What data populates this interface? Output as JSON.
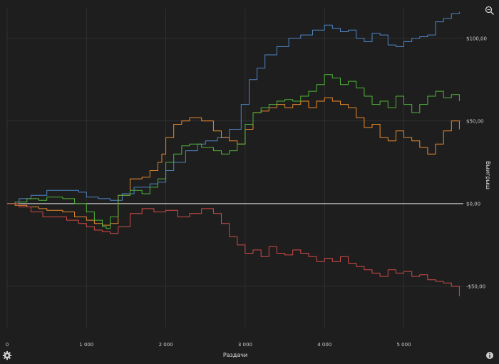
{
  "icons": {
    "zoom": "zoom-icon",
    "settings": "gear-icon",
    "info": "info-icon"
  },
  "colors": {
    "background": "#1e1e1e",
    "grid": "#3a3a3a",
    "zero_line": "#e8e8e8",
    "text": "#cfcfcf"
  },
  "chart_data": {
    "type": "line",
    "xlabel": "Раздачи",
    "ylabel": "Выигрыш",
    "xlim": [
      0,
      5750
    ],
    "ylim": [
      -75,
      118
    ],
    "x_ticks": [
      {
        "value": 0,
        "label": "0"
      },
      {
        "value": 1000,
        "label": "1 000"
      },
      {
        "value": 2000,
        "label": "2 000"
      },
      {
        "value": 3000,
        "label": "3 000"
      },
      {
        "value": 4000,
        "label": "4 000"
      },
      {
        "value": 5000,
        "label": "5 000"
      }
    ],
    "y_ticks": [
      {
        "value": 100,
        "label": "$100,00"
      },
      {
        "value": 50,
        "label": "$50,00"
      },
      {
        "value": 0,
        "label": "$0,00"
      },
      {
        "value": -50,
        "label": "-$50,00"
      }
    ],
    "grid": true,
    "series": [
      {
        "color": "#4f86c6",
        "x": [
          0,
          150,
          300,
          500,
          700,
          900,
          1000,
          1150,
          1300,
          1450,
          1600,
          1800,
          1900,
          2000,
          2100,
          2250,
          2400,
          2500,
          2650,
          2800,
          2950,
          3050,
          3150,
          3250,
          3400,
          3550,
          3700,
          3850,
          4000,
          4100,
          4200,
          4300,
          4400,
          4500,
          4600,
          4700,
          4800,
          4900,
          5000,
          5100,
          5200,
          5300,
          5400,
          5500,
          5600,
          5700
        ],
        "values": [
          0,
          3,
          5,
          8,
          8,
          7,
          4,
          3,
          2,
          6,
          10,
          12,
          13,
          20,
          25,
          32,
          36,
          38,
          40,
          45,
          60,
          75,
          82,
          90,
          95,
          100,
          102,
          105,
          108,
          106,
          104,
          105,
          100,
          98,
          103,
          102,
          96,
          95,
          98,
          100,
          101,
          102,
          110,
          112,
          115,
          116
        ]
      },
      {
        "color": "#e68a2e",
        "x": [
          0,
          100,
          250,
          400,
          500,
          700,
          850,
          1000,
          1100,
          1200,
          1300,
          1400,
          1550,
          1700,
          1800,
          1900,
          1950,
          2000,
          2100,
          2200,
          2300,
          2450,
          2600,
          2700,
          2800,
          2900,
          3000,
          3100,
          3200,
          3300,
          3400,
          3500,
          3600,
          3700,
          3800,
          3900,
          4000,
          4100,
          4200,
          4300,
          4400,
          4500,
          4600,
          4700,
          4800,
          4900,
          5000,
          5100,
          5200,
          5300,
          5400,
          5500,
          5600,
          5700
        ],
        "values": [
          0,
          -1,
          -2,
          -3,
          -4,
          -5,
          -8,
          -10,
          -12,
          -13,
          -12,
          5,
          15,
          16,
          20,
          25,
          30,
          40,
          48,
          50,
          52,
          50,
          44,
          40,
          38,
          36,
          45,
          55,
          56,
          58,
          60,
          58,
          60,
          62,
          58,
          62,
          64,
          62,
          60,
          58,
          52,
          46,
          48,
          40,
          38,
          44,
          40,
          38,
          34,
          30,
          36,
          44,
          50,
          45
        ]
      },
      {
        "color": "#4fb33a",
        "x": [
          0,
          100,
          250,
          400,
          500,
          700,
          850,
          1000,
          1100,
          1200,
          1250,
          1300,
          1400,
          1550,
          1700,
          1800,
          1900,
          2000,
          2100,
          2200,
          2300,
          2450,
          2600,
          2700,
          2800,
          2900,
          3000,
          3100,
          3200,
          3300,
          3400,
          3500,
          3600,
          3700,
          3800,
          3900,
          4000,
          4100,
          4200,
          4300,
          4400,
          4500,
          4600,
          4700,
          4800,
          4900,
          5000,
          5100,
          5200,
          5300,
          5400,
          5500,
          5600,
          5700
        ],
        "values": [
          0,
          1,
          3,
          2,
          4,
          3,
          0,
          -5,
          -10,
          -14,
          -15,
          -8,
          5,
          8,
          6,
          10,
          15,
          25,
          30,
          35,
          36,
          34,
          32,
          30,
          32,
          36,
          48,
          55,
          58,
          60,
          62,
          63,
          62,
          65,
          68,
          72,
          78,
          76,
          72,
          74,
          70,
          65,
          60,
          62,
          58,
          65,
          60,
          55,
          60,
          65,
          68,
          64,
          66,
          62
        ]
      },
      {
        "color": "#d04b47",
        "x": [
          0,
          150,
          300,
          450,
          600,
          750,
          900,
          1000,
          1100,
          1200,
          1300,
          1400,
          1550,
          1700,
          1850,
          2000,
          2150,
          2300,
          2450,
          2600,
          2700,
          2800,
          2900,
          3000,
          3100,
          3200,
          3300,
          3400,
          3500,
          3600,
          3700,
          3800,
          3900,
          4000,
          4100,
          4200,
          4300,
          4400,
          4500,
          4600,
          4700,
          4800,
          4900,
          5000,
          5100,
          5200,
          5300,
          5400,
          5500,
          5600,
          5700
        ],
        "values": [
          0,
          -2,
          -5,
          -8,
          -8,
          -10,
          -12,
          -14,
          -16,
          -17,
          -18,
          -14,
          -6,
          -3,
          -5,
          -4,
          -8,
          -6,
          -3,
          -6,
          -12,
          -20,
          -25,
          -30,
          -28,
          -32,
          -26,
          -30,
          -31,
          -28,
          -30,
          -32,
          -35,
          -33,
          -35,
          -32,
          -36,
          -38,
          -40,
          -42,
          -44,
          -40,
          -42,
          -41,
          -44,
          -43,
          -46,
          -47,
          -48,
          -50,
          -56
        ]
      }
    ]
  }
}
